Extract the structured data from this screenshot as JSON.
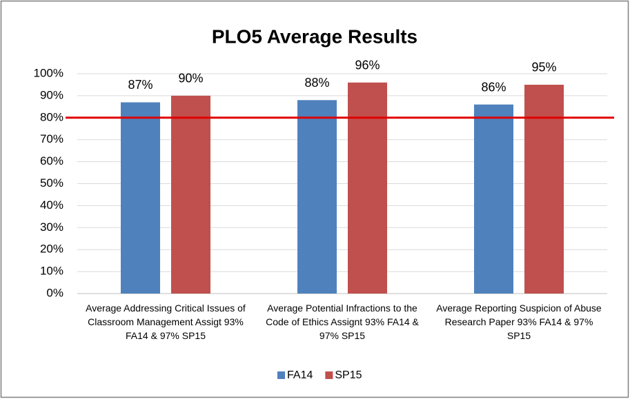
{
  "chart_data": {
    "type": "bar",
    "title": "PLO5 Average Results",
    "categories": [
      "Average Addressing Critical Issues of Classroom Management Assigt 93% FA14 & 97% SP15",
      "Average Potential Infractions to the Code of Ethics Assignt  93% FA14 & 97% SP15",
      "Average Reporting Suspicion of Abuse Research Paper  93% FA14 & 97% SP15"
    ],
    "series": [
      {
        "name": "FA14",
        "color": "#4f81bd",
        "values": [
          87,
          88,
          86
        ],
        "value_labels": [
          "87%",
          "88%",
          "86%"
        ]
      },
      {
        "name": "SP15",
        "color": "#c0504d",
        "values": [
          90,
          96,
          95
        ],
        "value_labels": [
          "90%",
          "96%",
          "95%"
        ]
      }
    ],
    "ylim": [
      0,
      100
    ],
    "yticks": [
      {
        "value": 0,
        "label": "0%"
      },
      {
        "value": 10,
        "label": "10%"
      },
      {
        "value": 20,
        "label": "20%"
      },
      {
        "value": 30,
        "label": "30%"
      },
      {
        "value": 40,
        "label": "40%"
      },
      {
        "value": 50,
        "label": "50%"
      },
      {
        "value": 60,
        "label": "60%"
      },
      {
        "value": 70,
        "label": "70%"
      },
      {
        "value": 80,
        "label": "80%"
      },
      {
        "value": 90,
        "label": "90%"
      },
      {
        "value": 100,
        "label": "100%"
      }
    ],
    "grid": true,
    "legend": "bottom",
    "reference_line": {
      "value": 80,
      "color": "#e00000"
    }
  }
}
